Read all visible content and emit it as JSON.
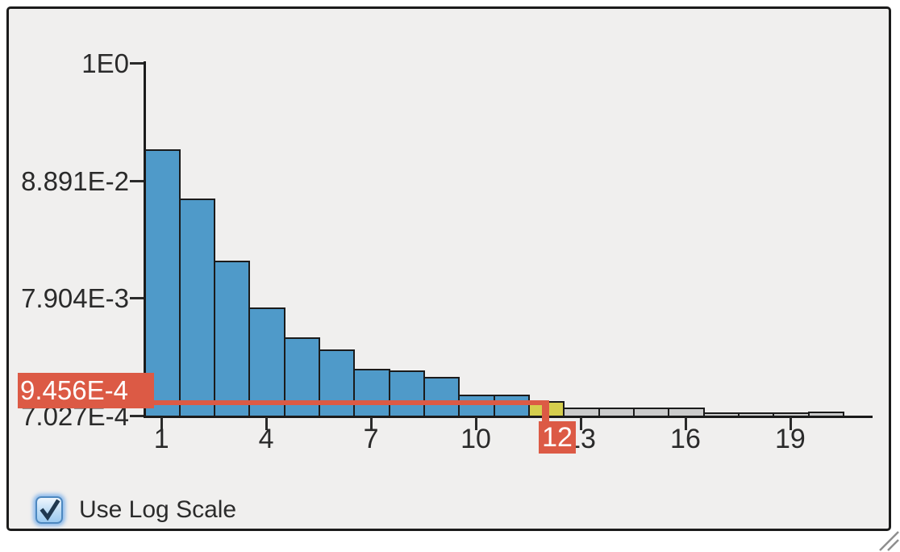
{
  "panel": {
    "background": "#f0efee",
    "border_color": "#1b1b1b"
  },
  "controls": {
    "log_scale_checkbox": {
      "label": "Use Log Scale",
      "checked": true
    }
  },
  "crosshair": {
    "y_value_label": "9.456E-4",
    "x_bin_label": "12",
    "color": "#dc5a45"
  },
  "icons": {
    "checkmark": "check-icon",
    "resize": "resize-grip-icon"
  },
  "chart_data": {
    "type": "bar",
    "subtype": "histogram",
    "title": "",
    "xlabel": "",
    "ylabel": "",
    "y_scale": "log",
    "grid": false,
    "legend": false,
    "y_ticks": [
      {
        "label": "1E0",
        "value": 1.0
      },
      {
        "label": "8.891E-2",
        "value": 0.08891
      },
      {
        "label": "7.904E-3",
        "value": 0.007904
      },
      {
        "label": "7.027E-4",
        "value": 0.0007027
      }
    ],
    "x_ticks": [
      "1",
      "4",
      "7",
      "10",
      "13",
      "16",
      "19"
    ],
    "highlighted_bin": 12,
    "highlight_value": 0.0009456,
    "bars": [
      {
        "bin": 1,
        "value": 0.169,
        "color": "blue"
      },
      {
        "bin": 2,
        "value": 0.0613,
        "color": "blue"
      },
      {
        "bin": 3,
        "value": 0.0171,
        "color": "blue"
      },
      {
        "bin": 4,
        "value": 0.00651,
        "color": "blue"
      },
      {
        "bin": 5,
        "value": 0.00352,
        "color": "blue"
      },
      {
        "bin": 6,
        "value": 0.00274,
        "color": "blue"
      },
      {
        "bin": 7,
        "value": 0.00184,
        "color": "blue"
      },
      {
        "bin": 8,
        "value": 0.00178,
        "color": "blue"
      },
      {
        "bin": 9,
        "value": 0.00156,
        "color": "blue"
      },
      {
        "bin": 10,
        "value": 0.00108,
        "color": "blue"
      },
      {
        "bin": 11,
        "value": 0.00108,
        "color": "blue"
      },
      {
        "bin": 12,
        "value": 0.0009456,
        "color": "yellow"
      },
      {
        "bin": 13,
        "value": 0.00083,
        "color": "gray"
      },
      {
        "bin": 14,
        "value": 0.00083,
        "color": "gray"
      },
      {
        "bin": 15,
        "value": 0.00083,
        "color": "gray"
      },
      {
        "bin": 16,
        "value": 0.00083,
        "color": "gray"
      },
      {
        "bin": 17,
        "value": 0.00075,
        "color": "gray"
      },
      {
        "bin": 18,
        "value": 0.00075,
        "color": "gray"
      },
      {
        "bin": 19,
        "value": 0.00075,
        "color": "gray"
      },
      {
        "bin": 20,
        "value": 0.00076,
        "color": "gray"
      }
    ],
    "colors": {
      "blue": "#4f9ac9",
      "yellow": "#d5ce4d",
      "gray": "#cbcbcb",
      "highlight": "#dc5a45"
    }
  }
}
